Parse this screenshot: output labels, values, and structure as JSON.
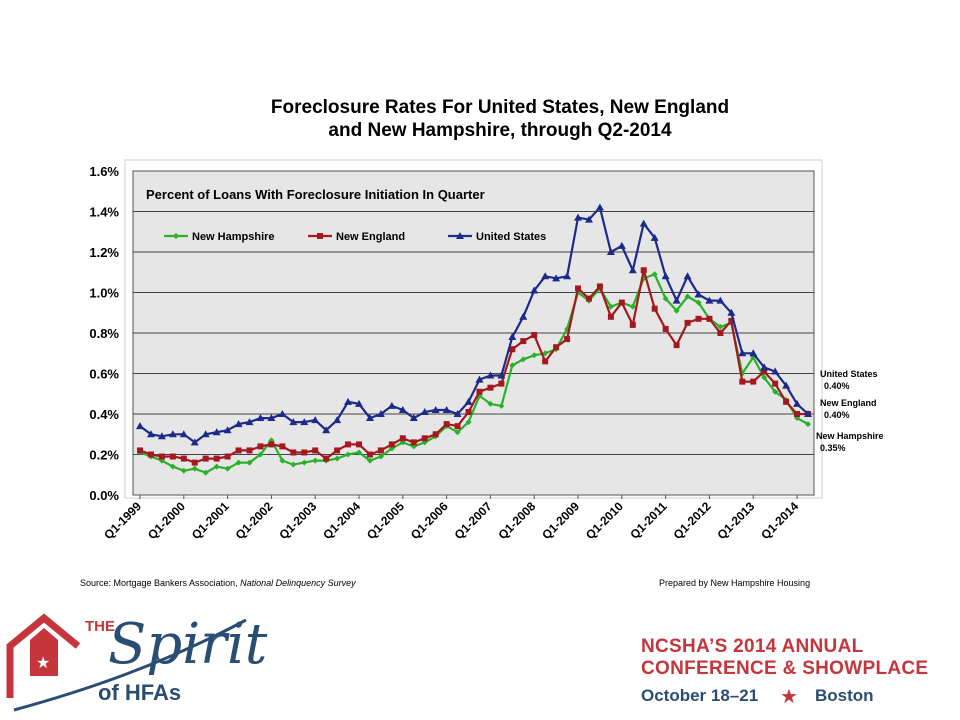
{
  "slide": {
    "title_line1": "Foreclosure Rates For United States, New England",
    "title_line2": "and New Hampshire, through Q2-2014",
    "source_prefix": "Source: Mortgage Bankers Association, ",
    "source_italic": "National Delinquency Survey",
    "prepared_by": "Prepared by New Hampshire Housing"
  },
  "chart_data": {
    "type": "line",
    "title": "Percent of Loans With Foreclosure Initiation In Quarter",
    "xlabel": "",
    "ylabel": "",
    "ylim": [
      0,
      1.6
    ],
    "yticks": [
      "0.0%",
      "0.2%",
      "0.4%",
      "0.6%",
      "0.8%",
      "1.0%",
      "1.2%",
      "1.4%",
      "1.6%"
    ],
    "xtick_labels": [
      "Q1-1999",
      "Q1-2000",
      "Q1-2001",
      "Q1-2002",
      "Q1-2003",
      "Q1-2004",
      "Q1-2005",
      "Q1-2006",
      "Q1-2007",
      "Q1-2008",
      "Q1-2009",
      "Q1-2010",
      "Q1-2011",
      "Q1-2012",
      "Q1-2013",
      "Q1-2014"
    ],
    "quarters_count": 62,
    "legend_position": "top-left",
    "grid": true,
    "series": [
      {
        "name": "New Hampshire",
        "color": "#2ab12a",
        "marker": "diamond",
        "values": [
          0.21,
          0.19,
          0.17,
          0.14,
          0.12,
          0.13,
          0.11,
          0.14,
          0.13,
          0.16,
          0.16,
          0.2,
          0.27,
          0.17,
          0.15,
          0.16,
          0.17,
          0.17,
          0.18,
          0.2,
          0.21,
          0.17,
          0.19,
          0.23,
          0.26,
          0.24,
          0.26,
          0.29,
          0.34,
          0.31,
          0.36,
          0.49,
          0.45,
          0.44,
          0.64,
          0.67,
          0.69,
          0.7,
          0.72,
          0.82,
          1.0,
          0.96,
          1.02,
          0.93,
          0.95,
          0.93,
          1.07,
          1.09,
          0.97,
          0.91,
          0.98,
          0.95,
          0.87,
          0.83,
          0.85,
          0.6,
          0.68,
          0.58,
          0.51,
          0.47,
          0.38,
          0.35
        ],
        "end_label": "New Hampshire",
        "end_value_label": "0.35%"
      },
      {
        "name": "New England",
        "color": "#a3191f",
        "marker": "square",
        "values": [
          0.22,
          0.2,
          0.19,
          0.19,
          0.18,
          0.16,
          0.18,
          0.18,
          0.19,
          0.22,
          0.22,
          0.24,
          0.25,
          0.24,
          0.21,
          0.21,
          0.22,
          0.18,
          0.22,
          0.25,
          0.25,
          0.2,
          0.22,
          0.25,
          0.28,
          0.26,
          0.28,
          0.3,
          0.35,
          0.34,
          0.41,
          0.51,
          0.53,
          0.55,
          0.72,
          0.76,
          0.79,
          0.66,
          0.73,
          0.77,
          1.02,
          0.97,
          1.03,
          0.88,
          0.95,
          0.84,
          1.11,
          0.92,
          0.82,
          0.74,
          0.85,
          0.87,
          0.87,
          0.8,
          0.86,
          0.56,
          0.56,
          0.61,
          0.55,
          0.46,
          0.4,
          0.4
        ],
        "end_label": "New England",
        "end_value_label": "0.40%"
      },
      {
        "name": "United States",
        "color": "#1c2a8a",
        "marker": "triangle",
        "values": [
          0.34,
          0.3,
          0.29,
          0.3,
          0.3,
          0.26,
          0.3,
          0.31,
          0.32,
          0.35,
          0.36,
          0.38,
          0.38,
          0.4,
          0.36,
          0.36,
          0.37,
          0.32,
          0.37,
          0.46,
          0.45,
          0.38,
          0.4,
          0.44,
          0.42,
          0.38,
          0.41,
          0.42,
          0.42,
          0.4,
          0.46,
          0.57,
          0.59,
          0.59,
          0.78,
          0.88,
          1.01,
          1.08,
          1.07,
          1.08,
          1.37,
          1.36,
          1.42,
          1.2,
          1.23,
          1.11,
          1.34,
          1.27,
          1.08,
          0.96,
          1.08,
          0.99,
          0.96,
          0.96,
          0.9,
          0.7,
          0.7,
          0.63,
          0.61,
          0.54,
          0.45,
          0.4
        ],
        "end_label": "United States",
        "end_value_label": "0.40%"
      }
    ]
  },
  "footer": {
    "spirit_the": "THE",
    "spirit_word": "Spirit",
    "spirit_of": "of HFAs",
    "conf_line1": "NCSHA’S 2014 ANNUAL",
    "conf_line2": "CONFERENCE & SHOWPLACE",
    "conf_date": "October 18–21",
    "conf_city": "Boston",
    "star_glyph": "★"
  }
}
